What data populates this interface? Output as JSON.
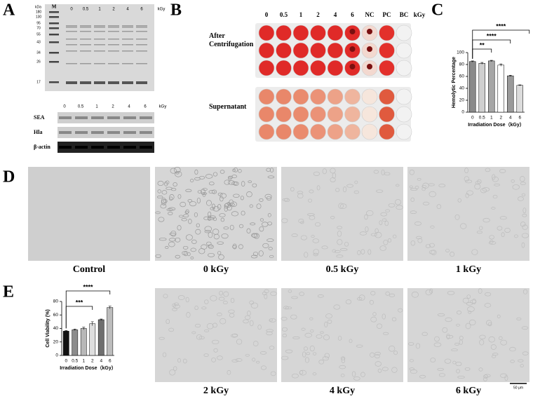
{
  "panel_labels": {
    "a": "A",
    "b": "B",
    "c": "C",
    "d": "D",
    "e": "E"
  },
  "panel_a": {
    "gel": {
      "unit": "kDa",
      "marker_lane": "M",
      "lanes": [
        "0",
        "0.5",
        "1",
        "2",
        "4",
        "6"
      ],
      "lane_unit": "kGy",
      "markers": [
        "180",
        "130",
        "95",
        "70",
        "55",
        "43",
        "34",
        "26",
        "17"
      ]
    },
    "western": {
      "lanes": [
        "0",
        "0.5",
        "1",
        "2",
        "4",
        "6"
      ],
      "lane_unit": "kGy",
      "proteins": [
        "SEA",
        "Hla",
        "β-actin"
      ]
    }
  },
  "panel_b": {
    "columns": [
      "0",
      "0.5",
      "1",
      "2",
      "4",
      "6",
      "NC",
      "PC",
      "BC"
    ],
    "unit": "kGy",
    "rows": [
      "After Centrifugation",
      "Supernatant"
    ]
  },
  "chart_data": [
    {
      "type": "bar",
      "y_label": "Hemolytic Percentage",
      "x_label": "Irradiation Dose（kGy）",
      "categories": [
        "0",
        "0.5",
        "1",
        "2",
        "4",
        "6"
      ],
      "values": [
        85,
        82,
        86,
        79,
        61,
        45
      ],
      "errors": [
        1,
        1.5,
        1,
        2,
        1,
        0.8
      ],
      "colors": [
        "#8a8a8a",
        "#cfcfcf",
        "#a6a6a6",
        "#ffffff",
        "#9a9a9a",
        "#dcdcdc"
      ],
      "ylim": [
        0,
        100
      ],
      "yticks": [
        0,
        20,
        40,
        60,
        80,
        100
      ],
      "annotations": [
        "**",
        "****",
        "****"
      ]
    },
    {
      "type": "bar",
      "y_label": "Cell Viability (%)",
      "x_label": "Irradiation Dose（kGy）",
      "categories": [
        "0",
        "0.5",
        "1",
        "2",
        "4",
        "6"
      ],
      "values": [
        36,
        38,
        40,
        47,
        53,
        71
      ],
      "errors": [
        0.8,
        1,
        1.8,
        3,
        1,
        2
      ],
      "colors": [
        "#111111",
        "#8c8c8c",
        "#b8b8b8",
        "#dedede",
        "#6e6e6e",
        "#bdbdbd"
      ],
      "ylim": [
        0,
        80
      ],
      "yticks": [
        0,
        20,
        40,
        60,
        80
      ],
      "annotations": [
        "***",
        "****"
      ]
    }
  ],
  "panel_d": {
    "captions": [
      "Control",
      "0 kGy",
      "0.5 kGy",
      "1 kGy"
    ]
  },
  "panel_e": {
    "captions": [
      "2 kGy",
      "4 kGy",
      "6 kGy"
    ],
    "scale_bar": "50 μm"
  }
}
